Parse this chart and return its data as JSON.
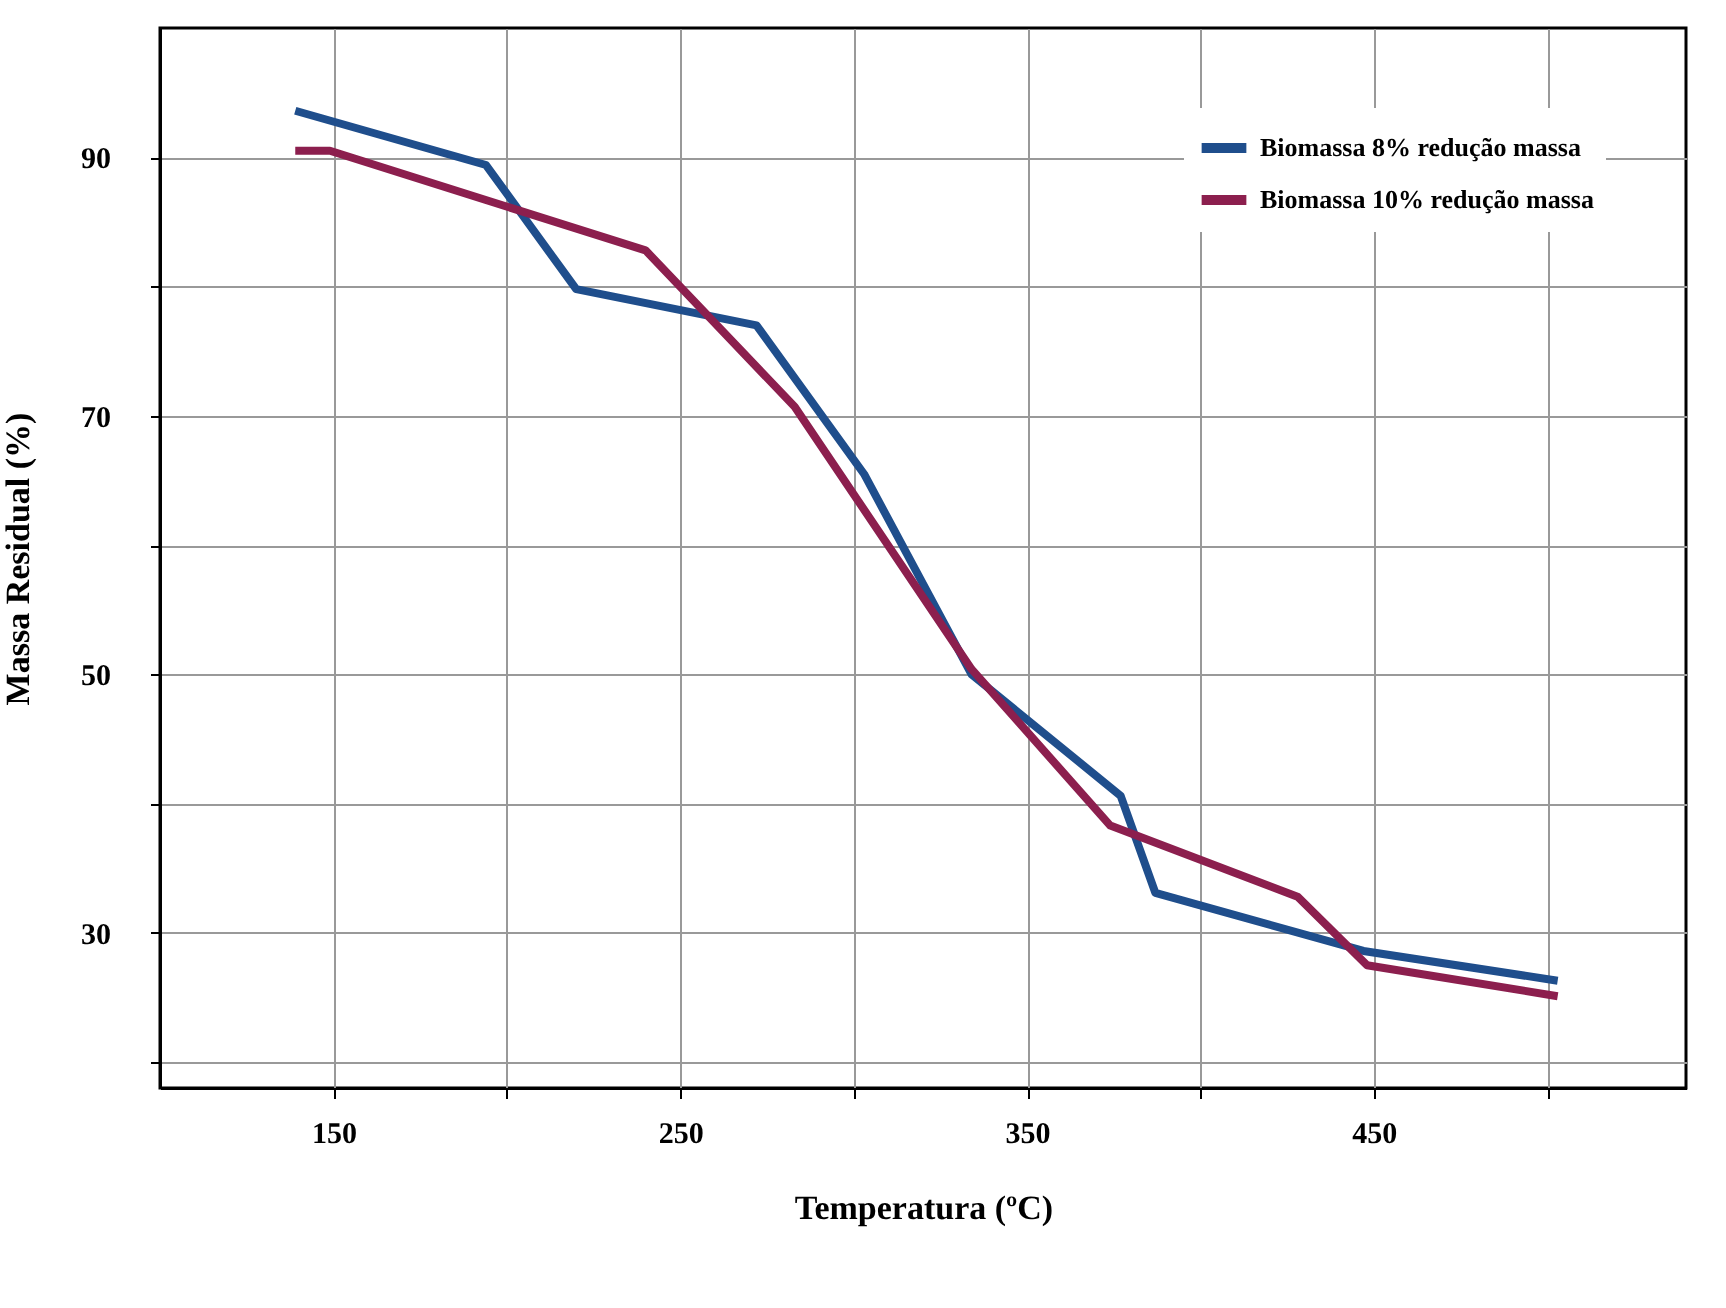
{
  "chart_data": {
    "type": "line",
    "xlabel": "Temperatura (ºC)",
    "ylabel": "Massa Residual (%)",
    "xlim": [
      100,
      540
    ],
    "ylim": [
      18,
      100
    ],
    "xticks": [
      150,
      {
        "value": 200,
        "label": null
      },
      250,
      {
        "value": 300,
        "label": null
      },
      350,
      {
        "value": 400,
        "label": null
      },
      450,
      {
        "value": 500,
        "label": null
      }
    ],
    "yticks": [
      {
        "value": 20,
        "label": null
      },
      30,
      {
        "value": 40,
        "label": null
      },
      50,
      {
        "value": 60,
        "label": null
      },
      70,
      {
        "value": 80,
        "label": null
      },
      90
    ],
    "grid": true,
    "legend": "top right",
    "marker": "none",
    "line_style": "solid",
    "series": [
      {
        "name": "Biomassa 8% redução massa",
        "color": "#1f4e8c",
        "x": [
          139,
          194,
          220,
          272,
          303,
          334,
          377,
          387,
          447,
          503
        ],
        "values": [
          93.6,
          89.4,
          79.8,
          77.0,
          65.5,
          50.0,
          40.6,
          33.1,
          28.6,
          26.3
        ]
      },
      {
        "name": "Biomassa 10% redução massa",
        "color": "#8c1f4e",
        "x": [
          139,
          149,
          240,
          283,
          334,
          374,
          428,
          448,
          503
        ],
        "values": [
          90.5,
          90.5,
          82.8,
          70.7,
          50.4,
          38.3,
          32.8,
          27.5,
          25.1
        ]
      }
    ]
  }
}
